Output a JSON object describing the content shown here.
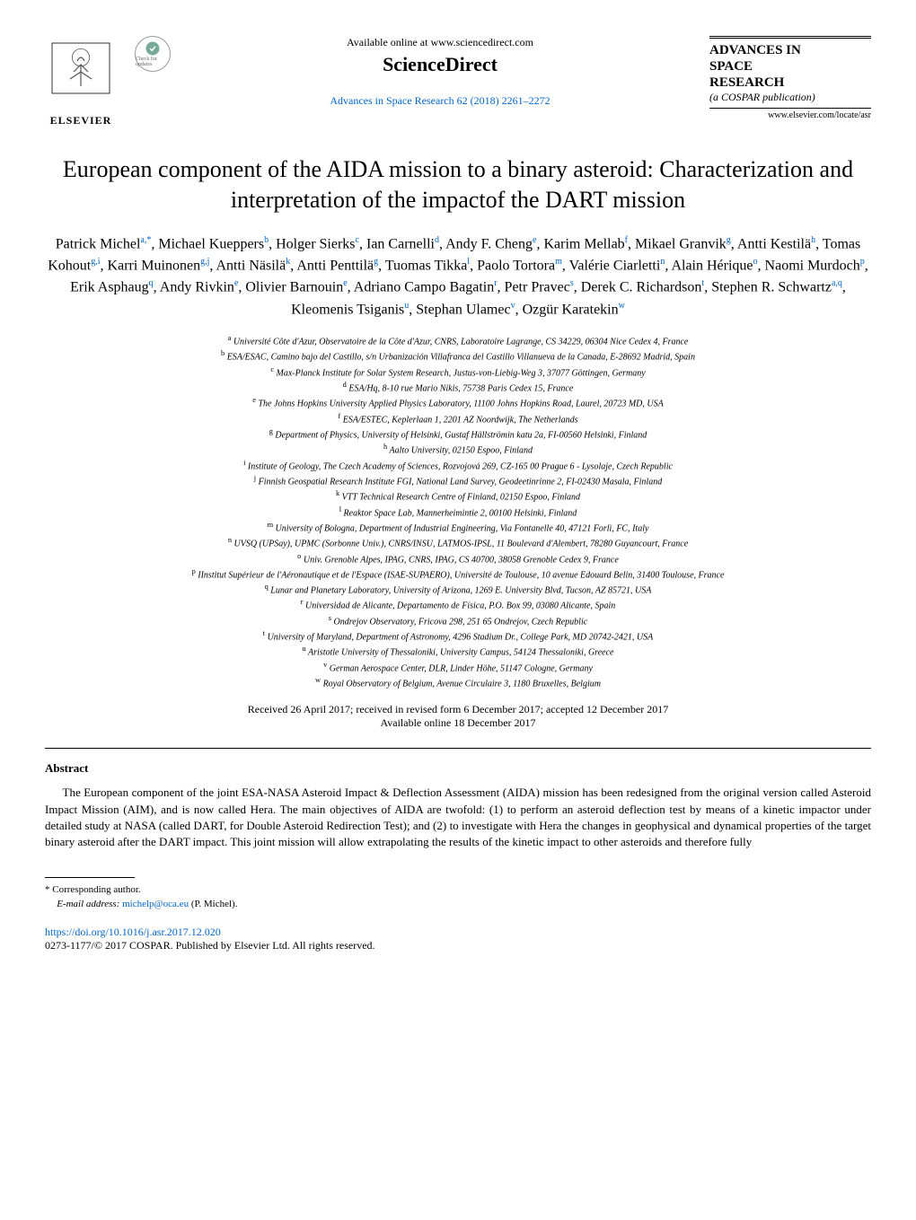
{
  "header": {
    "available_online": "Available online at www.sciencedirect.com",
    "sciencedirect": "ScienceDirect",
    "journal_ref": "Advances in Space Research 62 (2018) 2261–2272",
    "journal_title_line1": "ADVANCES IN",
    "journal_title_line2": "SPACE",
    "journal_title_line3": "RESEARCH",
    "cospar": "(a COSPAR publication)",
    "locate": "www.elsevier.com/locate/asr",
    "elsevier": "ELSEVIER",
    "check_updates": "Check for updates"
  },
  "title": "European component of the AIDA mission to a binary asteroid: Characterization and interpretation of the impactof the DART mission",
  "authors_html": "Patrick Michel<sup>a,*</sup>, Michael Kueppers<sup>b</sup>, Holger Sierks<sup>c</sup>, Ian Carnelli<sup>d</sup>, Andy F. Cheng<sup>e</sup>, Karim Mellab<sup>f</sup>, Mikael Granvik<sup>g</sup>, Antti Kestilä<sup>h</sup>, Tomas Kohout<sup>g,i</sup>, Karri Muinonen<sup>g,j</sup>, Antti Näsilä<sup>k</sup>, Antti Penttilä<sup>g</sup>, Tuomas Tikka<sup>l</sup>, Paolo Tortora<sup>m</sup>, Valérie Ciarletti<sup>n</sup>, Alain Hérique<sup>o</sup>, Naomi Murdoch<sup>p</sup>, Erik Asphaug<sup>q</sup>, Andy Rivkin<sup>e</sup>, Olivier Barnouin<sup>e</sup>, Adriano Campo Bagatin<sup>r</sup>, Petr Pravec<sup>s</sup>, Derek C. Richardson<sup>t</sup>, Stephen R. Schwartz<sup>a,q</sup>, Kleomenis Tsiganis<sup>u</sup>, Stephan Ulamec<sup>v</sup>, Ozgür Karatekin<sup>w</sup>",
  "affiliations": [
    {
      "k": "a",
      "t": "Université Côte d'Azur, Observatoire de la Côte d'Azur, CNRS, Laboratoire Lagrange, CS 34229, 06304 Nice Cedex 4, France"
    },
    {
      "k": "b",
      "t": "ESA/ESAC, Camino bajo del Castillo, s/n Urbanización Villafranca del Castillo Villanueva de la Canada, E-28692 Madrid, Spain"
    },
    {
      "k": "c",
      "t": "Max-Planck Institute for Solar System Research, Justus-von-Liebig-Weg 3, 37077 Göttingen, Germany"
    },
    {
      "k": "d",
      "t": "ESA/Hq, 8-10 rue Mario Nikis, 75738 Paris Cedex 15, France"
    },
    {
      "k": "e",
      "t": "The Johns Hopkins University Applied Physics Laboratory, 11100 Johns Hopkins Road, Laurel, 20723 MD, USA"
    },
    {
      "k": "f",
      "t": "ESA/ESTEC, Keplerlaan 1, 2201 AZ Noordwijk, The Netherlands"
    },
    {
      "k": "g",
      "t": "Department of Physics, University of Helsinki, Gustaf Hällströmin katu 2a, FI-00560 Helsinki, Finland"
    },
    {
      "k": "h",
      "t": "Aalto University, 02150 Espoo, Finland"
    },
    {
      "k": "i",
      "t": "Institute of Geology, The Czech Academy of Sciences, Rozvojová 269, CZ-165 00 Prague 6 - Lysolaje, Czech Republic"
    },
    {
      "k": "j",
      "t": "Finnish Geospatial Research Institute FGI, National Land Survey, Geodeetinrinne 2, FI-02430 Masala, Finland"
    },
    {
      "k": "k",
      "t": "VTT Technical Research Centre of Finland, 02150 Espoo, Finland"
    },
    {
      "k": "l",
      "t": "Reaktor Space Lab, Mannerheimintie 2, 00100 Helsinki, Finland"
    },
    {
      "k": "m",
      "t": "University of Bologna, Department of Industrial Engineering, Via Fontanelle 40, 47121 Forlì, FC, Italy"
    },
    {
      "k": "n",
      "t": "UVSQ (UPSay), UPMC (Sorbonne Univ.), CNRS/INSU, LATMOS-IPSL, 11 Boulevard d'Alembert, 78280 Guyancourt, France"
    },
    {
      "k": "o",
      "t": "Univ. Grenoble Alpes, IPAG, CNRS, IPAG, CS 40700, 38058 Grenoble Cedex 9, France"
    },
    {
      "k": "p",
      "t": "IInstitut Supérieur de l'Aéronautique et de l'Espace (ISAE-SUPAERO), Université de Toulouse, 10 avenue Edouard Belin, 31400 Toulouse, France"
    },
    {
      "k": "q",
      "t": "Lunar and Planetary Laboratory, University of Arizona, 1269 E. University Blvd, Tucson, AZ 85721, USA"
    },
    {
      "k": "r",
      "t": "Universidad de Alicante, Departamento de Física, P.O. Box 99, 03080 Alicante, Spain"
    },
    {
      "k": "s",
      "t": "Ondrejov Observatory, Fricova 298, 251 65 Ondrejov, Czech Republic"
    },
    {
      "k": "t",
      "t": "University of Maryland, Department of Astronomy, 4296 Stadium Dr., College Park, MD 20742-2421, USA"
    },
    {
      "k": "u",
      "t": "Aristotle University of Thessaloniki, University Campus, 54124 Thessaloniki, Greece"
    },
    {
      "k": "v",
      "t": "German Aerospace Center, DLR, Linder Höhe, 51147 Cologne, Germany"
    },
    {
      "k": "w",
      "t": "Royal Observatory of Belgium, Avenue Circulaire 3, 1180 Bruxelles, Belgium"
    }
  ],
  "dates": {
    "line1": "Received 26 April 2017; received in revised form 6 December 2017; accepted 12 December 2017",
    "line2": "Available online 18 December 2017"
  },
  "abstract": {
    "heading": "Abstract",
    "text": "The European component of the joint ESA-NASA Asteroid Impact & Deflection Assessment (AIDA) mission has been redesigned from the original version called Asteroid Impact Mission (AIM), and is now called Hera. The main objectives of AIDA are twofold: (1) to perform an asteroid deflection test by means of a kinetic impactor under detailed study at NASA (called DART, for Double Asteroid Redirection Test); and (2) to investigate with Hera the changes in geophysical and dynamical properties of the target binary asteroid after the DART impact. This joint mission will allow extrapolating the results of the kinetic impact to other asteroids and therefore fully"
  },
  "footnote": {
    "corresponding": "* Corresponding author.",
    "email_label": "E-mail address: ",
    "email": "michelp@oca.eu",
    "email_name": " (P. Michel)."
  },
  "doi": "https://doi.org/10.1016/j.asr.2017.12.020",
  "copyright": "0273-1177/© 2017 COSPAR. Published by Elsevier Ltd. All rights reserved.",
  "colors": {
    "link": "#0066cc",
    "text": "#000000",
    "background": "#ffffff"
  }
}
